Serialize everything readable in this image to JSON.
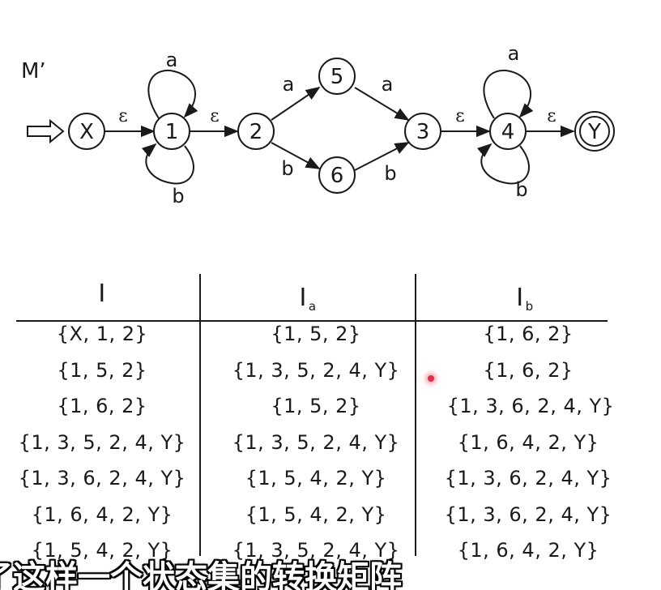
{
  "diagram": {
    "machine_name": "M’",
    "states": {
      "X": "X",
      "s1": "1",
      "s2": "2",
      "s5": "5",
      "s6": "6",
      "s3": "3",
      "s4": "4",
      "Y": "Y"
    },
    "edge_labels": {
      "x_1": "ε",
      "loop1_a": "a",
      "loop1_b": "b",
      "e1_2": "ε",
      "e2_5": "a",
      "e2_6": "b",
      "e5_3": "a",
      "e6_3": "b",
      "e3_4": "ε",
      "loop4_a": "a",
      "loop4_b": "b",
      "e4_y": "ε"
    },
    "accepting_state": "Y",
    "start_state": "X"
  },
  "table": {
    "headers": {
      "I": "I",
      "Ia_base": "I",
      "Ia_sub": "a",
      "Ib_base": "I",
      "Ib_sub": "b"
    },
    "rows": [
      [
        "{X, 1, 2}",
        "{1, 5, 2}",
        "{1, 6, 2}"
      ],
      [
        "{1, 5, 2}",
        "{1, 3, 5, 2, 4, Y}",
        "{1, 6, 2}"
      ],
      [
        "{1, 6, 2}",
        "{1, 5, 2}",
        "{1, 3, 6, 2, 4, Y}"
      ],
      [
        "{1, 3, 5, 2, 4, Y}",
        "{1, 3, 5, 2, 4, Y}",
        "{1, 6, 4, 2, Y}"
      ],
      [
        "{1, 3, 6, 2, 4, Y}",
        "{1, 5, 4, 2, Y}",
        "{1, 3, 6, 2, 4, Y}"
      ],
      [
        "{1, 6, 4, 2, Y}",
        "{1, 5, 4, 2, Y}",
        "{1, 3, 6, 2, 4, Y}"
      ],
      [
        "{1, 5, 4, 2, Y}",
        "{1, 3, 5, 2, 4, Y}",
        "{1, 6, 4, 2, Y}"
      ]
    ]
  },
  "subtitle": "了这样一个状态集的转换矩阵"
}
